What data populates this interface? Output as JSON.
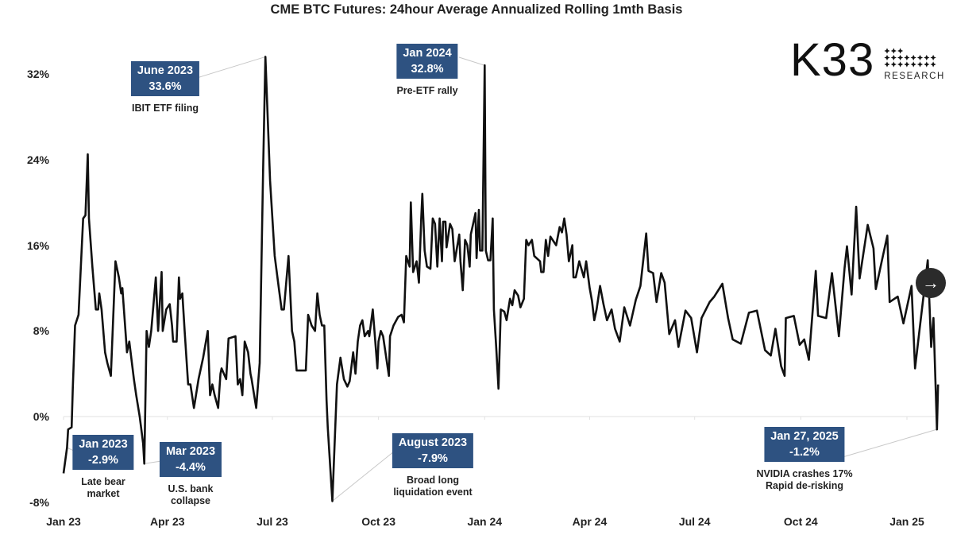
{
  "chart_data": {
    "type": "line",
    "title": "CME BTC Futures: 24hour Average Annualized Rolling 1mth Basis",
    "xlabel": "",
    "ylabel": "",
    "ylim": [
      -8,
      34
    ],
    "yticks": [
      "-8%",
      "0%",
      "8%",
      "16%",
      "24%",
      "32%"
    ],
    "ytick_values": [
      -8,
      0,
      8,
      16,
      24,
      32
    ],
    "xticks": [
      "Jan 23",
      "Apr 23",
      "Jul 23",
      "Oct 23",
      "Jan 24",
      "Apr 24",
      "Jul 24",
      "Oct 24",
      "Jan 25"
    ],
    "xtick_dates": [
      "2023-01-01",
      "2023-04-01",
      "2023-07-01",
      "2023-10-01",
      "2024-01-01",
      "2024-04-01",
      "2024-07-01",
      "2024-10-01",
      "2025-01-01"
    ],
    "grid": "zero line only",
    "line_color": "#111111",
    "series": [
      {
        "x": [
          "2023-01-01",
          "2023-01-04",
          "2023-01-05",
          "2023-01-08",
          "2023-01-09",
          "2023-01-11",
          "2023-01-14",
          "2023-01-18",
          "2023-01-20",
          "2023-01-22",
          "2023-01-23",
          "2023-01-26",
          "2023-01-29",
          "2023-01-31",
          "2023-02-01",
          "2023-02-03",
          "2023-02-06",
          "2023-02-08",
          "2023-02-11",
          "2023-02-15",
          "2023-02-18",
          "2023-02-20",
          "2023-02-21",
          "2023-02-25",
          "2023-02-27",
          "2023-03-03",
          "2023-03-05",
          "2023-03-08",
          "2023-03-11",
          "2023-03-12",
          "2023-03-14",
          "2023-03-16",
          "2023-03-18",
          "2023-03-22",
          "2023-03-24",
          "2023-03-27",
          "2023-03-28",
          "2023-03-31",
          "2023-04-03",
          "2023-04-05",
          "2023-04-06",
          "2023-04-09",
          "2023-04-11",
          "2023-04-12",
          "2023-04-14",
          "2023-04-16",
          "2023-04-19",
          "2023-04-21",
          "2023-04-24",
          "2023-04-28",
          "2023-05-02",
          "2023-05-06",
          "2023-05-08",
          "2023-05-10",
          "2023-05-12",
          "2023-05-15",
          "2023-05-17",
          "2023-05-18",
          "2023-05-22",
          "2023-05-24",
          "2023-05-30",
          "2023-06-01",
          "2023-06-03",
          "2023-06-05",
          "2023-06-07",
          "2023-06-10",
          "2023-06-12",
          "2023-06-13",
          "2023-06-17",
          "2023-06-20",
          "2023-06-23",
          "2023-06-25",
          "2023-06-29",
          "2023-07-03",
          "2023-07-06",
          "2023-07-09",
          "2023-07-11",
          "2023-07-13",
          "2023-07-15",
          "2023-07-18",
          "2023-07-20",
          "2023-07-22",
          "2023-07-30",
          "2023-08-01",
          "2023-08-04",
          "2023-08-07",
          "2023-08-09",
          "2023-08-11",
          "2023-08-13",
          "2023-08-15",
          "2023-08-17",
          "2023-08-18",
          "2023-08-22",
          "2023-08-26",
          "2023-08-29",
          "2023-09-01",
          "2023-09-04",
          "2023-09-06",
          "2023-09-09",
          "2023-09-11",
          "2023-09-13",
          "2023-09-15",
          "2023-09-17",
          "2023-09-19",
          "2023-09-22",
          "2023-09-23",
          "2023-09-26",
          "2023-09-30",
          "2023-10-01",
          "2023-10-03",
          "2023-10-05",
          "2023-10-10",
          "2023-10-11",
          "2023-10-14",
          "2023-10-18",
          "2023-10-21",
          "2023-10-23",
          "2023-10-25",
          "2023-10-28",
          "2023-10-29",
          "2023-10-31",
          "2023-11-03",
          "2023-11-05",
          "2023-11-07",
          "2023-11-08",
          "2023-11-10",
          "2023-11-12",
          "2023-11-15",
          "2023-11-17",
          "2023-11-19",
          "2023-11-21",
          "2023-11-23",
          "2023-11-25",
          "2023-11-26",
          "2023-11-28",
          "2023-11-29",
          "2023-12-02",
          "2023-12-04",
          "2023-12-06",
          "2023-12-10",
          "2023-12-11",
          "2023-12-13",
          "2023-12-15",
          "2023-12-17",
          "2023-12-19",
          "2023-12-20",
          "2023-12-21",
          "2023-12-24",
          "2023-12-25",
          "2023-12-27",
          "2023-12-28",
          "2023-12-30",
          "2024-01-01",
          "2024-01-02",
          "2024-01-04",
          "2024-01-06",
          "2024-01-08",
          "2024-01-09",
          "2024-01-11",
          "2024-01-13",
          "2024-01-15",
          "2024-01-18",
          "2024-01-20",
          "2024-01-23",
          "2024-01-25",
          "2024-01-27",
          "2024-01-30",
          "2024-02-01",
          "2024-02-04",
          "2024-02-06",
          "2024-02-08",
          "2024-02-11",
          "2024-02-13",
          "2024-02-18",
          "2024-02-19",
          "2024-02-21",
          "2024-02-23",
          "2024-02-25",
          "2024-02-27",
          "2024-03-03",
          "2024-03-06",
          "2024-03-08",
          "2024-03-10",
          "2024-03-12",
          "2024-03-14",
          "2024-03-17",
          "2024-03-18",
          "2024-03-20",
          "2024-03-23",
          "2024-03-27",
          "2024-03-29",
          "2024-04-01",
          "2024-04-03",
          "2024-04-05",
          "2024-04-07",
          "2024-04-10",
          "2024-04-13",
          "2024-04-16",
          "2024-04-20",
          "2024-04-23",
          "2024-04-27",
          "2024-05-01",
          "2024-05-06",
          "2024-05-11",
          "2024-05-15",
          "2024-05-20",
          "2024-05-22",
          "2024-05-26",
          "2024-05-29",
          "2024-06-02",
          "2024-06-05",
          "2024-06-09",
          "2024-06-14",
          "2024-06-17",
          "2024-06-23",
          "2024-06-28",
          "2024-07-03",
          "2024-07-07",
          "2024-07-14",
          "2024-07-18",
          "2024-07-25",
          "2024-07-30",
          "2024-08-03",
          "2024-08-10",
          "2024-08-17",
          "2024-08-24",
          "2024-08-31",
          "2024-09-05",
          "2024-09-09",
          "2024-09-14",
          "2024-09-17",
          "2024-09-18",
          "2024-09-25",
          "2024-09-30",
          "2024-10-04",
          "2024-10-08",
          "2024-10-14",
          "2024-10-16",
          "2024-10-23",
          "2024-10-28",
          "2024-11-03",
          "2024-11-08",
          "2024-11-10",
          "2024-11-14",
          "2024-11-18",
          "2024-11-21",
          "2024-11-28",
          "2024-12-03",
          "2024-12-05",
          "2024-12-10",
          "2024-12-15",
          "2024-12-17",
          "2024-12-24",
          "2024-12-29",
          "2025-01-05",
          "2025-01-08",
          "2025-01-12",
          "2025-01-19",
          "2025-01-22",
          "2025-01-24",
          "2025-01-27",
          "2025-01-28"
        ],
        "values": [
          -5.3,
          -2.9,
          -1.2,
          -1.0,
          2.5,
          8.5,
          9.5,
          18.5,
          18.8,
          24.5,
          18.5,
          14,
          10,
          10,
          11.5,
          10,
          6,
          5,
          3.8,
          14.5,
          13,
          11.5,
          12,
          6,
          7,
          3.5,
          2.0,
          0,
          -2.5,
          -4.4,
          8,
          6.5,
          8,
          13,
          8,
          13.5,
          8,
          10,
          10.5,
          8.5,
          7,
          7,
          13,
          11,
          11.5,
          8,
          3,
          3,
          0.8,
          3.5,
          5.5,
          8,
          2,
          3,
          2,
          0.8,
          4,
          4.5,
          3.5,
          7.3,
          7.5,
          3,
          3.5,
          2,
          7,
          6,
          4,
          3.5,
          0.8,
          5,
          23,
          33.6,
          22,
          15,
          12.5,
          10,
          10,
          12.5,
          15,
          8,
          7,
          4.3,
          4.3,
          9.5,
          8.5,
          8,
          11.5,
          9.5,
          8.5,
          8.5,
          1.5,
          -1,
          -7.9,
          3,
          5.5,
          3.5,
          2.8,
          3.3,
          6,
          4,
          7,
          8.5,
          9,
          7.5,
          8,
          7.5,
          10,
          4.5,
          7,
          8,
          7.5,
          3.8,
          7.5,
          8.5,
          9.3,
          9.5,
          8.8,
          15,
          14,
          20,
          13.5,
          14.5,
          12.5,
          18.5,
          20.8,
          15.5,
          14,
          13.8,
          18.5,
          18,
          14,
          18.5,
          14.5,
          18.2,
          18.2,
          15.8,
          18,
          17.5,
          14.5,
          17,
          14.5,
          11.8,
          16.5,
          16,
          14,
          17,
          17.5,
          19,
          14.8,
          19.3,
          15.5,
          15.5,
          32.8,
          15.5,
          14.6,
          14.6,
          18.5,
          10,
          6.5,
          2.6,
          10,
          9.8,
          9,
          11,
          10.4,
          11.8,
          11.3,
          10.2,
          11,
          16.5,
          16,
          16.5,
          15,
          14.5,
          13.5,
          13.5,
          16.5,
          15,
          16.8,
          16,
          17.7,
          17.2,
          18.5,
          17,
          14.5,
          16,
          13,
          13,
          14.5,
          13,
          14.5,
          12,
          10.8,
          9,
          10,
          12.2,
          10.5,
          9,
          10,
          8.2,
          7.0,
          10.2,
          8.5,
          10.9,
          12.2,
          17.1,
          13.6,
          13.4,
          10.7,
          13.4,
          12.5,
          7.7,
          9.0,
          6.5,
          9.9,
          9.2,
          6.0,
          9.2,
          10.7,
          11.2,
          12.4,
          9.2,
          7.2,
          6.8,
          9.7,
          9.9,
          6.2,
          5.7,
          8.2,
          4.7,
          3.8,
          9.2,
          9.4,
          6.7,
          7.2,
          5.3,
          13.6,
          9.4,
          9.2,
          13.4,
          7.5,
          13.9,
          15.9,
          11.4,
          19.6,
          12.9,
          17.9,
          15.7,
          11.9,
          14.4,
          16.9,
          10.7,
          11.2,
          8.7,
          12.2,
          4.5,
          8.2,
          14.6,
          6.5,
          9.2,
          -1.2,
          3.0
        ]
      }
    ],
    "annotations": [
      {
        "date": "2023-01-04",
        "value": -2.9,
        "label": "Jan 2023",
        "value_label": "-2.9%",
        "note": [
          "Late bear",
          "market"
        ]
      },
      {
        "date": "2023-03-12",
        "value": -4.4,
        "label": "Mar 2023",
        "value_label": "-4.4%",
        "note": [
          "U.S. bank",
          "collapse"
        ]
      },
      {
        "date": "2023-06-25",
        "value": 33.6,
        "label": "June 2023",
        "value_label": "33.6%",
        "note": [
          "IBIT ETF filing"
        ]
      },
      {
        "date": "2023-08-22",
        "value": -7.9,
        "label": "August 2023",
        "value_label": "-7.9%",
        "note": [
          "Broad long",
          "liquidation event"
        ]
      },
      {
        "date": "2024-01-01",
        "value": 32.8,
        "label": "Jan 2024",
        "value_label": "32.8%",
        "note": [
          "Pre-ETF rally"
        ]
      },
      {
        "date": "2025-01-27",
        "value": -1.2,
        "label": "Jan 27, 2025",
        "value_label": "-1.2%",
        "note": [
          "NVIDIA crashes 17%",
          "Rapid de-risking"
        ]
      }
    ],
    "annotation_color": "#2e5281"
  },
  "logo": {
    "text": "K33",
    "subtext": "RESEARCH"
  },
  "controls": {
    "next_icon": "arrow-right-icon",
    "next_glyph": "→"
  }
}
